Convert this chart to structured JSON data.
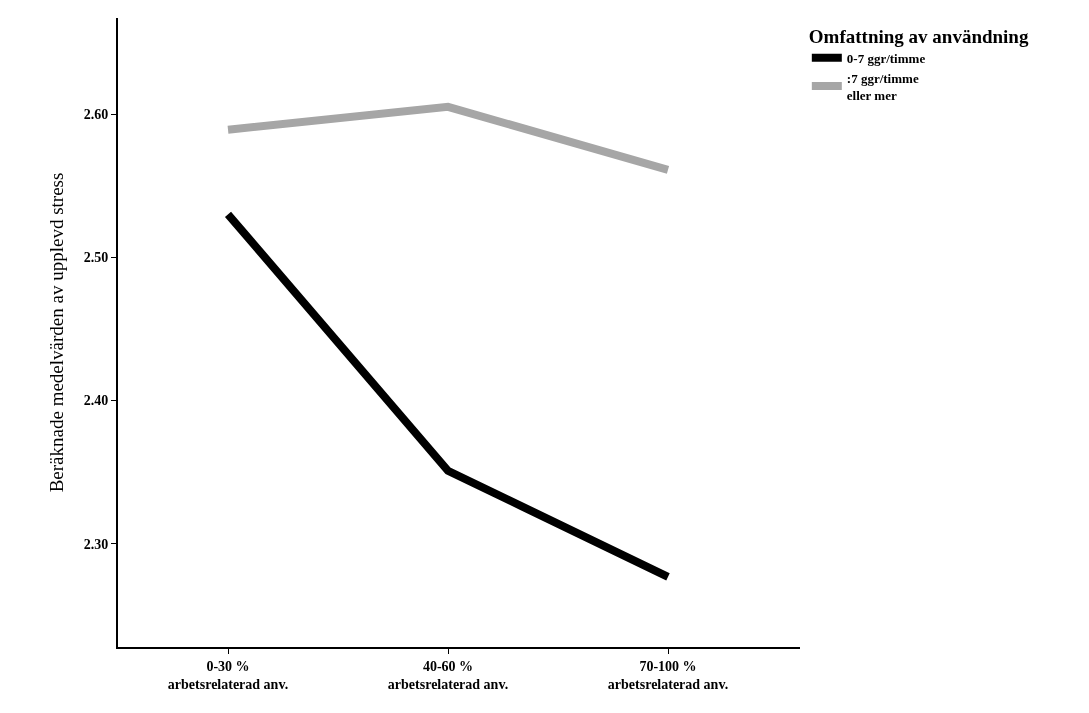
{
  "chart_data": {
    "type": "line",
    "ylabel": "Beräknade medelvärden av upplevd stress",
    "legend_title": "Omfattning av användning",
    "categories": [
      "0-30 %\narbetsrelaterad anv.",
      "40-60 %\narbetsrelaterad anv.",
      "70-100 %\narbetsrelaterad anv."
    ],
    "series": [
      {
        "name": "0-7 ggr/timme",
        "color": "#000000",
        "values": [
          2.53,
          2.351,
          2.277
        ]
      },
      {
        "name": ":7 ggr/timme\neller mer",
        "color": "#a6a6a6",
        "values": [
          2.589,
          2.605,
          2.561
        ]
      }
    ],
    "ylim": [
      2.228,
      2.667
    ],
    "yticks": [
      {
        "value": 2.3,
        "label": "2.30"
      },
      {
        "value": 2.4,
        "label": "2.40"
      },
      {
        "value": 2.5,
        "label": "2.50"
      },
      {
        "value": 2.6,
        "label": "2.60"
      }
    ],
    "legend": "top right",
    "marker": "none",
    "line_style": "solid"
  }
}
